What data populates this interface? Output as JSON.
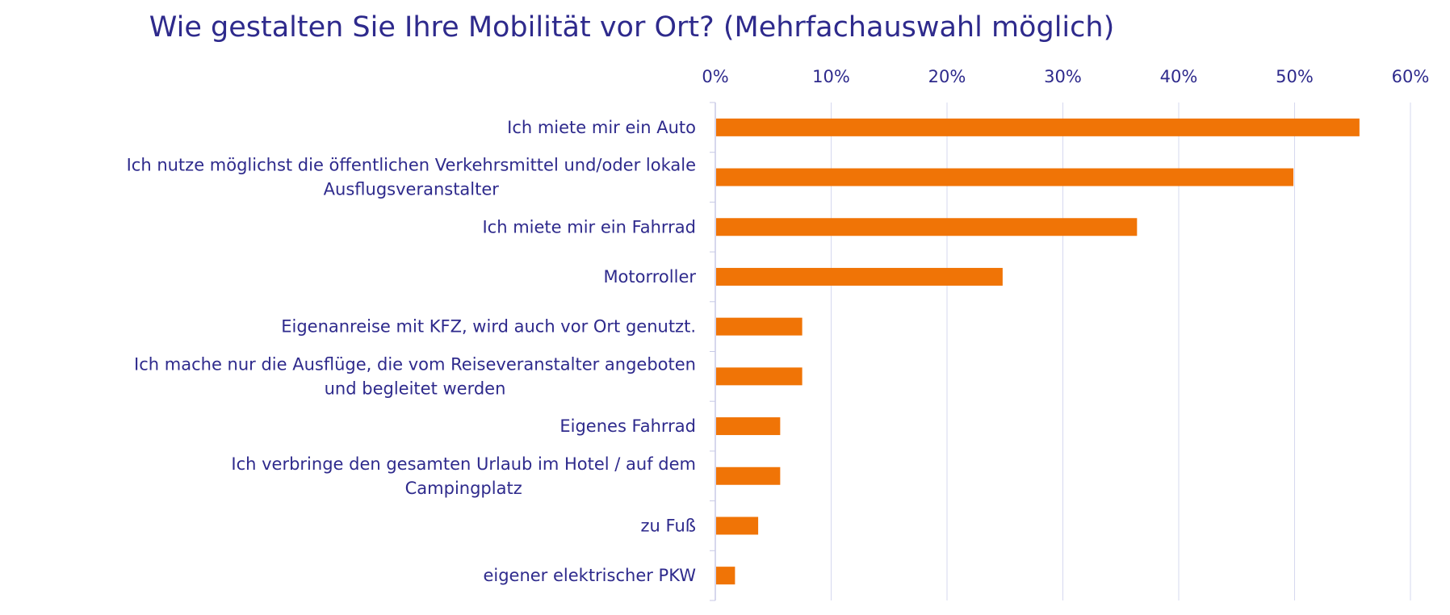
{
  "chart_data": {
    "type": "bar",
    "orientation": "horizontal",
    "title": "Wie gestalten Sie Ihre Mobilität vor Ort? (Mehrfachauswahl möglich)",
    "xlabel": "",
    "ylabel": "",
    "xlim": [
      0,
      60
    ],
    "x_ticks": [
      "0%",
      "10%",
      "20%",
      "30%",
      "40%",
      "50%",
      "60%"
    ],
    "x_tick_values": [
      0,
      10,
      20,
      30,
      40,
      50,
      60
    ],
    "x_axis_position": "top",
    "grid": true,
    "legend": "none",
    "bar_color": "#f07406",
    "grid_color": "#d6d8ef",
    "text_color": "#2e2a8c",
    "categories": [
      [
        "Ich miete mir ein Auto"
      ],
      [
        "Ich nutze möglichst die öffentlichen Verkehrsmittel und/oder lokale",
        "Ausflugsveranstalter"
      ],
      [
        "Ich miete mir ein Fahrrad"
      ],
      [
        "Motorroller"
      ],
      [
        "Eigenanreise mit KFZ, wird auch vor Ort genutzt."
      ],
      [
        "Ich mache nur die Ausflüge, die vom Reiseveranstalter angeboten",
        "und begleitet werden"
      ],
      [
        "Eigenes Fahrrad"
      ],
      [
        "Ich verbringe den gesamten Urlaub im Hotel / auf dem",
        "Campingplatz"
      ],
      [
        "zu Fuß"
      ],
      [
        "eigener elektrischer PKW"
      ]
    ],
    "values": [
      55.6,
      49.9,
      36.4,
      24.8,
      7.5,
      7.5,
      5.6,
      5.6,
      3.7,
      1.7
    ]
  }
}
